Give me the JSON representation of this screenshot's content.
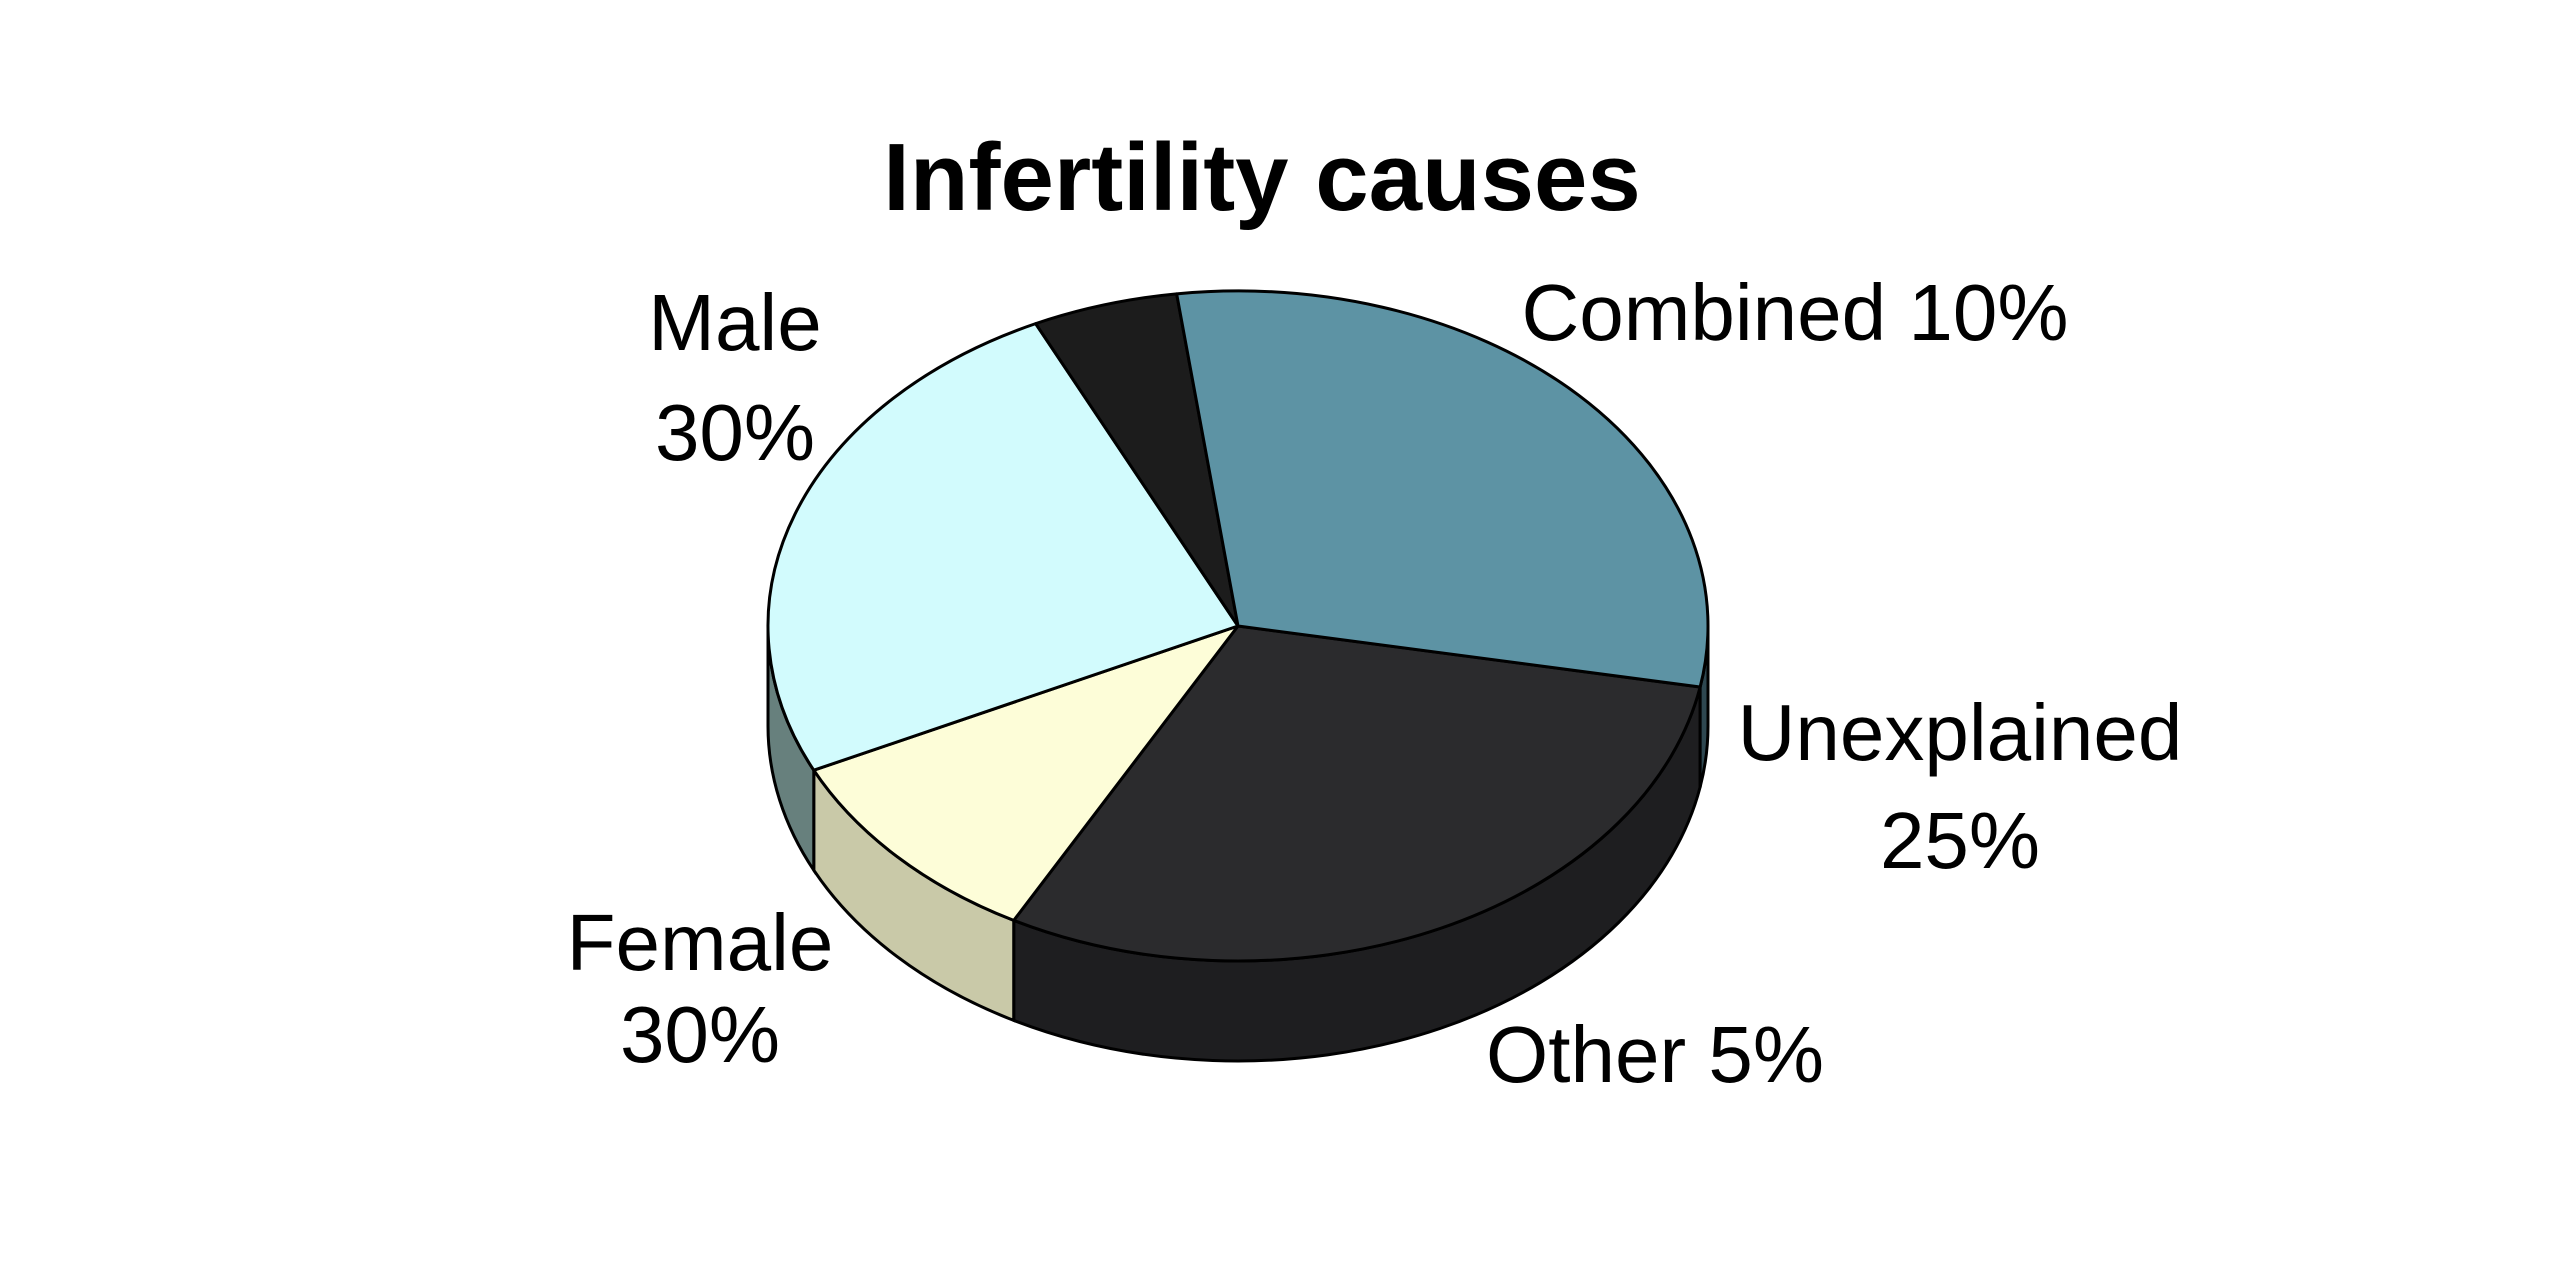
{
  "chart_data": {
    "type": "pie",
    "title": "Infertility causes",
    "slices": [
      {
        "label": "Male",
        "value": 30,
        "value_label": "30%",
        "color": "#2b2b2d",
        "side_color": "#1e1e20"
      },
      {
        "label": "Combined",
        "value": 10,
        "value_label": "10%",
        "color": "#fdfdd8",
        "side_color": "#c9c9a8"
      },
      {
        "label": "Unexplained",
        "value": 25,
        "value_label": "25%",
        "color": "#d2fbfd",
        "side_color": "#67807d"
      },
      {
        "label": "Other",
        "value": 5,
        "value_label": "5%",
        "color": "#1c1c1c",
        "side_color": "#0f0f0f"
      },
      {
        "label": "Female",
        "value": 30,
        "value_label": "30%",
        "color": "#5d93a4",
        "side_color": "#2e4750"
      }
    ],
    "style": "3d",
    "legend": "none"
  }
}
